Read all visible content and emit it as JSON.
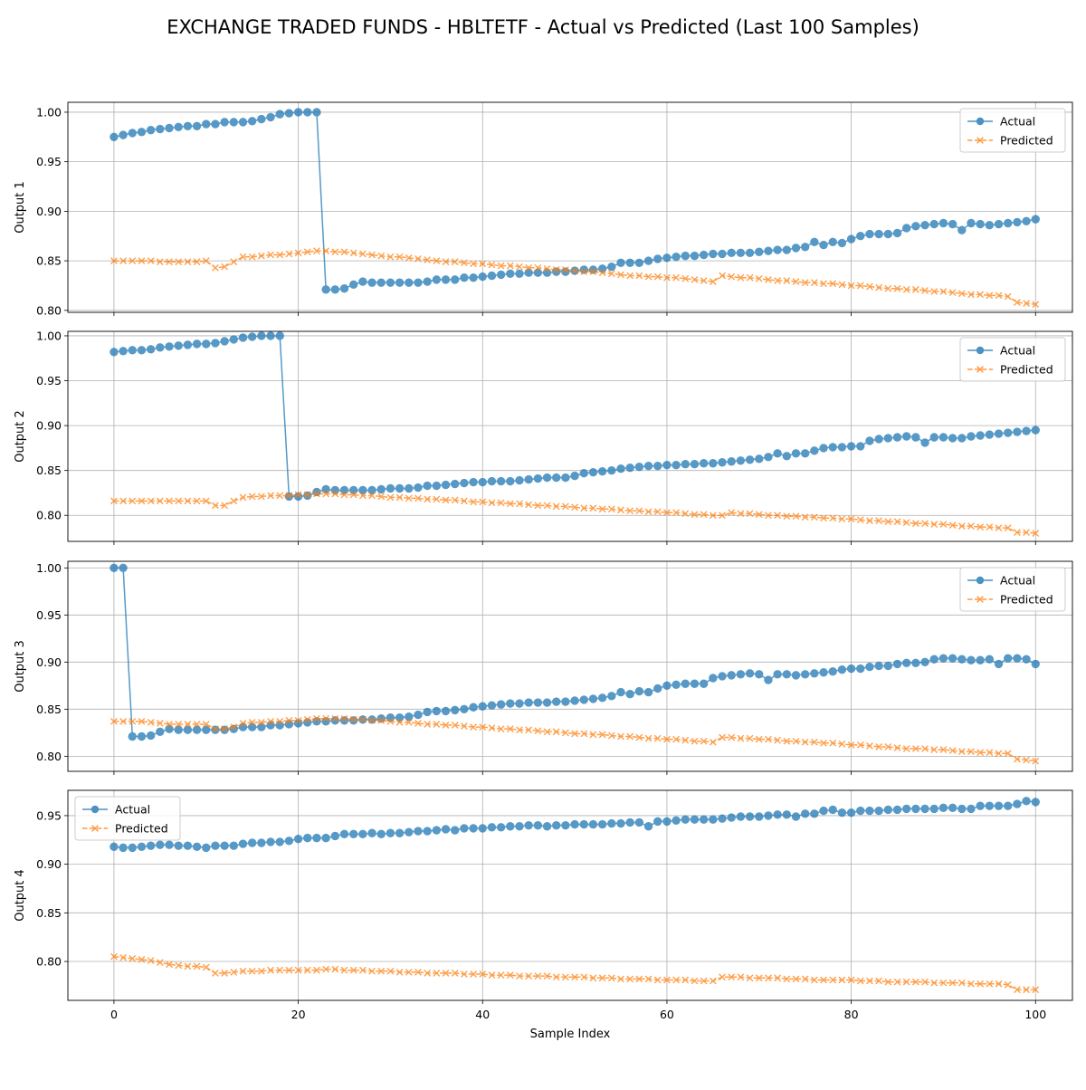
{
  "title": "EXCHANGE TRADED FUNDS - HBLTETF - Actual vs Predicted (Last 100 Samples)",
  "xlabel": "Sample Index",
  "colors": {
    "actual": "#1f77b4",
    "predicted": "#ff7f0e"
  },
  "chart_data": [
    {
      "type": "line",
      "ylabel": "Output 1",
      "xlim": [
        -5,
        104
      ],
      "ylim": [
        0.798,
        1.01
      ],
      "xticks": [
        0,
        20,
        40,
        60,
        80,
        100
      ],
      "yticks": [
        0.8,
        0.85,
        0.9,
        0.95,
        1.0
      ],
      "grid": true,
      "legend": "upper right",
      "series": [
        {
          "name": "Actual",
          "marker": "circle",
          "values": [
            0.975,
            0.977,
            0.979,
            0.98,
            0.982,
            0.983,
            0.984,
            0.985,
            0.986,
            0.986,
            0.988,
            0.988,
            0.99,
            0.99,
            0.99,
            0.991,
            0.993,
            0.995,
            0.998,
            0.999,
            1.0,
            1.0,
            1.0,
            0.821,
            0.821,
            0.822,
            0.826,
            0.829,
            0.828,
            0.828,
            0.828,
            0.828,
            0.828,
            0.828,
            0.829,
            0.831,
            0.831,
            0.831,
            0.833,
            0.833,
            0.834,
            0.835,
            0.836,
            0.837,
            0.837,
            0.838,
            0.838,
            0.838,
            0.839,
            0.839,
            0.84,
            0.841,
            0.841,
            0.842,
            0.844,
            0.848,
            0.848,
            0.848,
            0.85,
            0.852,
            0.853,
            0.854,
            0.855,
            0.855,
            0.856,
            0.857,
            0.857,
            0.858,
            0.858,
            0.858,
            0.859,
            0.86,
            0.861,
            0.861,
            0.863,
            0.864,
            0.869,
            0.866,
            0.869,
            0.868,
            0.872,
            0.875,
            0.877,
            0.877,
            0.877,
            0.878,
            0.883,
            0.885,
            0.886,
            0.887,
            0.888,
            0.887,
            0.881,
            0.888,
            0.887,
            0.886,
            0.887,
            0.888,
            0.889,
            0.89,
            0.892
          ]
        },
        {
          "name": "Predicted",
          "marker": "x",
          "values": [
            0.85,
            0.85,
            0.85,
            0.85,
            0.85,
            0.849,
            0.849,
            0.849,
            0.849,
            0.849,
            0.85,
            0.843,
            0.844,
            0.849,
            0.854,
            0.854,
            0.855,
            0.856,
            0.856,
            0.857,
            0.858,
            0.859,
            0.86,
            0.86,
            0.859,
            0.859,
            0.858,
            0.857,
            0.856,
            0.855,
            0.854,
            0.854,
            0.853,
            0.852,
            0.851,
            0.85,
            0.849,
            0.849,
            0.848,
            0.847,
            0.847,
            0.846,
            0.845,
            0.845,
            0.844,
            0.843,
            0.843,
            0.842,
            0.841,
            0.841,
            0.84,
            0.839,
            0.839,
            0.838,
            0.837,
            0.836,
            0.835,
            0.835,
            0.834,
            0.834,
            0.833,
            0.833,
            0.832,
            0.831,
            0.83,
            0.829,
            0.835,
            0.834,
            0.833,
            0.833,
            0.832,
            0.831,
            0.83,
            0.83,
            0.829,
            0.828,
            0.828,
            0.827,
            0.827,
            0.826,
            0.825,
            0.825,
            0.824,
            0.823,
            0.822,
            0.822,
            0.821,
            0.821,
            0.82,
            0.819,
            0.819,
            0.818,
            0.817,
            0.816,
            0.816,
            0.815,
            0.815,
            0.814,
            0.808,
            0.807,
            0.806
          ]
        }
      ]
    },
    {
      "type": "line",
      "ylabel": "Output 2",
      "xlim": [
        -5,
        104
      ],
      "ylim": [
        0.771,
        1.005
      ],
      "xticks": [
        0,
        20,
        40,
        60,
        80,
        100
      ],
      "yticks": [
        0.8,
        0.85,
        0.9,
        0.95,
        1.0
      ],
      "grid": true,
      "legend": "upper right",
      "series": [
        {
          "name": "Actual",
          "marker": "circle",
          "values": [
            0.982,
            0.983,
            0.984,
            0.984,
            0.985,
            0.987,
            0.988,
            0.989,
            0.99,
            0.991,
            0.991,
            0.992,
            0.994,
            0.996,
            0.998,
            0.999,
            1.0,
            1.0,
            1.0,
            0.821,
            0.821,
            0.822,
            0.826,
            0.829,
            0.828,
            0.828,
            0.828,
            0.828,
            0.828,
            0.829,
            0.83,
            0.83,
            0.83,
            0.831,
            0.833,
            0.833,
            0.834,
            0.835,
            0.836,
            0.837,
            0.837,
            0.838,
            0.838,
            0.838,
            0.839,
            0.84,
            0.841,
            0.842,
            0.842,
            0.842,
            0.844,
            0.847,
            0.848,
            0.849,
            0.85,
            0.852,
            0.853,
            0.854,
            0.855,
            0.855,
            0.856,
            0.856,
            0.857,
            0.857,
            0.858,
            0.858,
            0.859,
            0.86,
            0.861,
            0.862,
            0.863,
            0.865,
            0.869,
            0.866,
            0.869,
            0.869,
            0.872,
            0.875,
            0.876,
            0.876,
            0.877,
            0.877,
            0.883,
            0.885,
            0.886,
            0.887,
            0.888,
            0.887,
            0.881,
            0.887,
            0.887,
            0.886,
            0.886,
            0.888,
            0.889,
            0.89,
            0.891,
            0.892,
            0.893,
            0.894,
            0.895
          ]
        },
        {
          "name": "Predicted",
          "marker": "x",
          "values": [
            0.816,
            0.816,
            0.816,
            0.816,
            0.816,
            0.816,
            0.816,
            0.816,
            0.816,
            0.816,
            0.816,
            0.811,
            0.811,
            0.816,
            0.82,
            0.821,
            0.821,
            0.822,
            0.822,
            0.822,
            0.823,
            0.823,
            0.824,
            0.824,
            0.824,
            0.823,
            0.823,
            0.822,
            0.822,
            0.821,
            0.82,
            0.82,
            0.819,
            0.819,
            0.818,
            0.818,
            0.817,
            0.817,
            0.816,
            0.815,
            0.815,
            0.814,
            0.814,
            0.813,
            0.813,
            0.812,
            0.811,
            0.811,
            0.81,
            0.81,
            0.809,
            0.808,
            0.808,
            0.807,
            0.807,
            0.806,
            0.805,
            0.805,
            0.804,
            0.804,
            0.803,
            0.803,
            0.802,
            0.801,
            0.801,
            0.8,
            0.8,
            0.803,
            0.802,
            0.802,
            0.801,
            0.8,
            0.8,
            0.799,
            0.799,
            0.798,
            0.798,
            0.797,
            0.797,
            0.796,
            0.796,
            0.795,
            0.794,
            0.794,
            0.793,
            0.793,
            0.792,
            0.791,
            0.791,
            0.79,
            0.79,
            0.789,
            0.788,
            0.788,
            0.787,
            0.787,
            0.786,
            0.786,
            0.781,
            0.781,
            0.78
          ]
        }
      ]
    },
    {
      "type": "line",
      "ylabel": "Output 3",
      "xlim": [
        -5,
        104
      ],
      "ylim": [
        0.784,
        1.007
      ],
      "xticks": [
        0,
        20,
        40,
        60,
        80,
        100
      ],
      "yticks": [
        0.8,
        0.85,
        0.9,
        0.95,
        1.0
      ],
      "grid": true,
      "legend": "upper right",
      "series": [
        {
          "name": "Actual",
          "marker": "circle",
          "values": [
            1.0,
            1.0,
            0.821,
            0.821,
            0.822,
            0.826,
            0.829,
            0.828,
            0.828,
            0.828,
            0.828,
            0.828,
            0.828,
            0.829,
            0.831,
            0.831,
            0.831,
            0.833,
            0.833,
            0.834,
            0.835,
            0.836,
            0.837,
            0.837,
            0.838,
            0.838,
            0.838,
            0.839,
            0.839,
            0.84,
            0.841,
            0.841,
            0.842,
            0.844,
            0.847,
            0.848,
            0.848,
            0.849,
            0.85,
            0.852,
            0.853,
            0.854,
            0.855,
            0.856,
            0.856,
            0.857,
            0.857,
            0.857,
            0.858,
            0.858,
            0.859,
            0.86,
            0.861,
            0.862,
            0.864,
            0.868,
            0.866,
            0.869,
            0.868,
            0.872,
            0.875,
            0.876,
            0.877,
            0.877,
            0.877,
            0.883,
            0.885,
            0.886,
            0.887,
            0.888,
            0.887,
            0.881,
            0.887,
            0.887,
            0.886,
            0.887,
            0.888,
            0.889,
            0.89,
            0.892,
            0.893,
            0.893,
            0.895,
            0.896,
            0.896,
            0.898,
            0.899,
            0.899,
            0.9,
            0.903,
            0.904,
            0.904,
            0.903,
            0.902,
            0.902,
            0.903,
            0.898,
            0.904,
            0.904,
            0.903,
            0.898
          ]
        },
        {
          "name": "Predicted",
          "marker": "x",
          "values": [
            0.837,
            0.837,
            0.837,
            0.837,
            0.836,
            0.835,
            0.834,
            0.834,
            0.834,
            0.834,
            0.834,
            0.829,
            0.829,
            0.831,
            0.835,
            0.836,
            0.836,
            0.837,
            0.837,
            0.838,
            0.838,
            0.839,
            0.84,
            0.84,
            0.84,
            0.84,
            0.839,
            0.839,
            0.838,
            0.838,
            0.837,
            0.836,
            0.836,
            0.835,
            0.834,
            0.834,
            0.833,
            0.833,
            0.832,
            0.831,
            0.831,
            0.83,
            0.829,
            0.829,
            0.828,
            0.828,
            0.827,
            0.826,
            0.826,
            0.825,
            0.824,
            0.824,
            0.823,
            0.823,
            0.822,
            0.821,
            0.821,
            0.82,
            0.819,
            0.819,
            0.818,
            0.818,
            0.817,
            0.816,
            0.816,
            0.815,
            0.82,
            0.82,
            0.819,
            0.819,
            0.818,
            0.818,
            0.817,
            0.816,
            0.816,
            0.815,
            0.815,
            0.814,
            0.814,
            0.813,
            0.812,
            0.812,
            0.811,
            0.81,
            0.81,
            0.809,
            0.808,
            0.808,
            0.808,
            0.807,
            0.807,
            0.806,
            0.805,
            0.805,
            0.804,
            0.804,
            0.803,
            0.803,
            0.797,
            0.796,
            0.795
          ]
        }
      ]
    },
    {
      "type": "line",
      "ylabel": "Output 4",
      "xlim": [
        -5,
        104
      ],
      "ylim": [
        0.76,
        0.976
      ],
      "xticks": [
        0,
        20,
        40,
        60,
        80,
        100
      ],
      "yticks": [
        0.8,
        0.85,
        0.9,
        0.95
      ],
      "grid": true,
      "legend": "upper left",
      "series": [
        {
          "name": "Actual",
          "marker": "circle",
          "values": [
            0.918,
            0.917,
            0.917,
            0.918,
            0.919,
            0.92,
            0.92,
            0.919,
            0.919,
            0.918,
            0.917,
            0.919,
            0.919,
            0.919,
            0.921,
            0.922,
            0.922,
            0.923,
            0.923,
            0.924,
            0.926,
            0.927,
            0.927,
            0.927,
            0.929,
            0.931,
            0.931,
            0.931,
            0.932,
            0.931,
            0.932,
            0.932,
            0.933,
            0.934,
            0.934,
            0.935,
            0.936,
            0.935,
            0.937,
            0.937,
            0.937,
            0.938,
            0.938,
            0.939,
            0.939,
            0.94,
            0.94,
            0.939,
            0.94,
            0.94,
            0.941,
            0.941,
            0.941,
            0.941,
            0.942,
            0.942,
            0.943,
            0.943,
            0.939,
            0.944,
            0.944,
            0.945,
            0.946,
            0.946,
            0.946,
            0.946,
            0.947,
            0.948,
            0.949,
            0.949,
            0.949,
            0.95,
            0.951,
            0.951,
            0.949,
            0.952,
            0.952,
            0.955,
            0.956,
            0.953,
            0.953,
            0.955,
            0.955,
            0.955,
            0.956,
            0.956,
            0.957,
            0.957,
            0.957,
            0.957,
            0.958,
            0.958,
            0.957,
            0.957,
            0.96,
            0.96,
            0.96,
            0.96,
            0.962,
            0.965,
            0.964
          ]
        },
        {
          "name": "Predicted",
          "marker": "x",
          "values": [
            0.805,
            0.804,
            0.803,
            0.802,
            0.801,
            0.799,
            0.797,
            0.796,
            0.795,
            0.795,
            0.794,
            0.788,
            0.788,
            0.789,
            0.79,
            0.79,
            0.79,
            0.791,
            0.791,
            0.791,
            0.791,
            0.791,
            0.791,
            0.792,
            0.792,
            0.791,
            0.791,
            0.791,
            0.79,
            0.79,
            0.79,
            0.789,
            0.789,
            0.789,
            0.788,
            0.788,
            0.788,
            0.788,
            0.787,
            0.787,
            0.787,
            0.786,
            0.786,
            0.786,
            0.785,
            0.785,
            0.785,
            0.785,
            0.784,
            0.784,
            0.784,
            0.784,
            0.783,
            0.783,
            0.783,
            0.782,
            0.782,
            0.782,
            0.782,
            0.781,
            0.781,
            0.781,
            0.781,
            0.78,
            0.78,
            0.78,
            0.784,
            0.784,
            0.784,
            0.783,
            0.783,
            0.783,
            0.783,
            0.782,
            0.782,
            0.782,
            0.781,
            0.781,
            0.781,
            0.781,
            0.781,
            0.78,
            0.78,
            0.78,
            0.779,
            0.779,
            0.779,
            0.779,
            0.779,
            0.778,
            0.778,
            0.778,
            0.778,
            0.777,
            0.777,
            0.777,
            0.777,
            0.776,
            0.771,
            0.771,
            0.771
          ]
        }
      ]
    }
  ]
}
